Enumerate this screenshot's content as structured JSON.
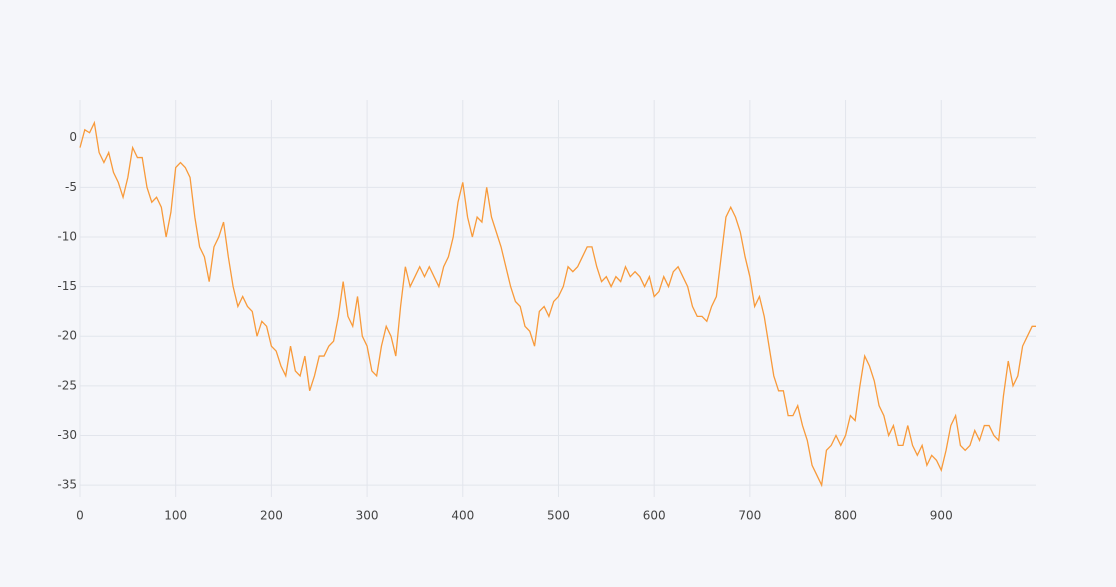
{
  "chart_data": {
    "type": "line",
    "xlim": [
      0,
      999
    ],
    "ylim": [
      -36.2,
      3.8
    ],
    "xticks": [
      0,
      100,
      200,
      300,
      400,
      500,
      600,
      700,
      800,
      900
    ],
    "yticks": [
      0,
      -5,
      -10,
      -15,
      -20,
      -25,
      -30,
      -35
    ],
    "grid": true,
    "series": [
      {
        "color": "#f89a3a",
        "x": [
          0,
          5,
          10,
          15,
          20,
          25,
          30,
          35,
          40,
          45,
          50,
          55,
          60,
          65,
          70,
          75,
          80,
          85,
          90,
          95,
          100,
          105,
          110,
          115,
          120,
          125,
          130,
          135,
          140,
          145,
          150,
          155,
          160,
          165,
          170,
          175,
          180,
          185,
          190,
          195,
          200,
          205,
          210,
          215,
          220,
          225,
          230,
          235,
          240,
          245,
          250,
          255,
          260,
          265,
          270,
          275,
          280,
          285,
          290,
          295,
          300,
          305,
          310,
          315,
          320,
          325,
          330,
          335,
          340,
          345,
          350,
          355,
          360,
          365,
          370,
          375,
          380,
          385,
          390,
          395,
          400,
          405,
          410,
          415,
          420,
          425,
          430,
          435,
          440,
          445,
          450,
          455,
          460,
          465,
          470,
          475,
          480,
          485,
          490,
          495,
          500,
          505,
          510,
          515,
          520,
          525,
          530,
          535,
          540,
          545,
          550,
          555,
          560,
          565,
          570,
          575,
          580,
          585,
          590,
          595,
          600,
          605,
          610,
          615,
          620,
          625,
          630,
          635,
          640,
          645,
          650,
          655,
          660,
          665,
          670,
          675,
          680,
          685,
          690,
          695,
          700,
          705,
          710,
          715,
          720,
          725,
          730,
          735,
          740,
          745,
          750,
          755,
          760,
          765,
          770,
          775,
          780,
          785,
          790,
          795,
          800,
          805,
          810,
          815,
          820,
          825,
          830,
          835,
          840,
          845,
          850,
          855,
          860,
          865,
          870,
          875,
          880,
          885,
          890,
          895,
          900,
          905,
          910,
          915,
          920,
          925,
          930,
          935,
          940,
          945,
          950,
          955,
          960,
          965,
          970,
          975,
          980,
          985,
          990,
          995,
          999
        ],
        "values": [
          -1,
          0.8,
          0.5,
          1.5,
          -1.5,
          -2.5,
          -1.5,
          -3.5,
          -4.5,
          -6,
          -4,
          -1,
          -2,
          -2,
          -5,
          -6.5,
          -6,
          -7,
          -10,
          -7.5,
          -3,
          -2.5,
          -3,
          -4,
          -8,
          -11,
          -12,
          -14.5,
          -11,
          -10,
          -8.5,
          -12,
          -15,
          -17,
          -16,
          -17,
          -17.5,
          -20,
          -18.5,
          -19,
          -21,
          -21.5,
          -23,
          -24,
          -21,
          -23.5,
          -24,
          -22,
          -25.5,
          -24,
          -22,
          -22,
          -21,
          -20.5,
          -18,
          -14.5,
          -18,
          -19,
          -16,
          -20,
          -21,
          -23.5,
          -24,
          -21,
          -19,
          -20,
          -22,
          -17,
          -13,
          -15,
          -14,
          -13,
          -14,
          -13,
          -14,
          -15,
          -13,
          -12,
          -10,
          -6.5,
          -4.5,
          -8,
          -10,
          -8,
          -8.5,
          -5,
          -8,
          -9.5,
          -11,
          -13,
          -15,
          -16.5,
          -17,
          -19,
          -19.5,
          -21,
          -17.5,
          -17,
          -18,
          -16.5,
          -16,
          -15,
          -13,
          -13.5,
          -13,
          -12,
          -11,
          -11,
          -13,
          -14.5,
          -14,
          -15,
          -14,
          -14.5,
          -13,
          -14,
          -13.5,
          -14,
          -15,
          -14,
          -16,
          -15.5,
          -14,
          -15,
          -13.5,
          -13,
          -14,
          -15,
          -17,
          -18,
          -18,
          -18.5,
          -17,
          -16,
          -12,
          -8,
          -7,
          -8,
          -9.5,
          -12,
          -14,
          -17,
          -16,
          -18,
          -21,
          -24,
          -25.5,
          -25.5,
          -28,
          -28,
          -27,
          -29,
          -30.5,
          -33,
          -34,
          -35,
          -31.5,
          -31,
          -30,
          -31,
          -30,
          -28,
          -28.5,
          -25,
          -22,
          -23,
          -24.5,
          -27,
          -28,
          -30,
          -29,
          -31,
          -31,
          -29,
          -31,
          -32,
          -31,
          -33,
          -32,
          -32.5,
          -33.5,
          -31.5,
          -29,
          -28,
          -31,
          -31.5,
          -31,
          -29.5,
          -30.5,
          -29,
          -29,
          -30,
          -30.5,
          -26,
          -22.5,
          -25,
          -24,
          -21,
          -20,
          -19,
          -19
        ]
      }
    ]
  }
}
